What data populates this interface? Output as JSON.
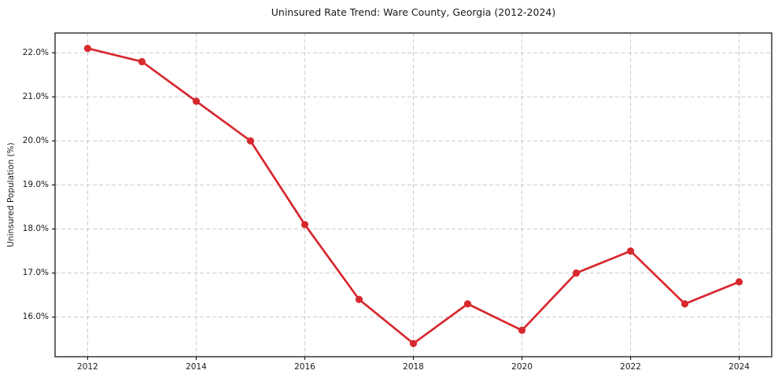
{
  "chart_data": {
    "type": "line",
    "title": "Uninsured Rate Trend: Ware County, Georgia (2012-2024)",
    "xlabel": "",
    "ylabel": "Uninsured Population (%)",
    "x": [
      2012,
      2013,
      2014,
      2015,
      2016,
      2017,
      2018,
      2019,
      2020,
      2021,
      2022,
      2023,
      2024
    ],
    "series": [
      {
        "name": "Uninsured Rate",
        "values": [
          22.1,
          21.8,
          20.9,
          20.0,
          18.1,
          16.4,
          15.4,
          16.3,
          15.7,
          17.0,
          17.5,
          16.3,
          16.8
        ]
      }
    ],
    "xticks": {
      "values": [
        2012,
        2014,
        2016,
        2018,
        2020,
        2022,
        2024
      ],
      "labels": [
        "2012",
        "2014",
        "2016",
        "2018",
        "2020",
        "2022",
        "2024"
      ]
    },
    "yticks": {
      "values": [
        16,
        17,
        18,
        19,
        20,
        21,
        22
      ],
      "labels": [
        "16.0%",
        "17.0%",
        "18.0%",
        "19.0%",
        "20.0%",
        "21.0%",
        "22.0%"
      ]
    },
    "xlim": [
      2011.4,
      2024.6
    ],
    "ylim": [
      15.1,
      22.45
    ],
    "grid": true,
    "grid_style": "dashed",
    "legend": "none",
    "marker": "circle",
    "colors": {
      "line": "#d7282e",
      "marker": "#d7282e",
      "grid": "#cccccc",
      "axis": "#1a1a1a",
      "background": "#ffffff"
    }
  }
}
